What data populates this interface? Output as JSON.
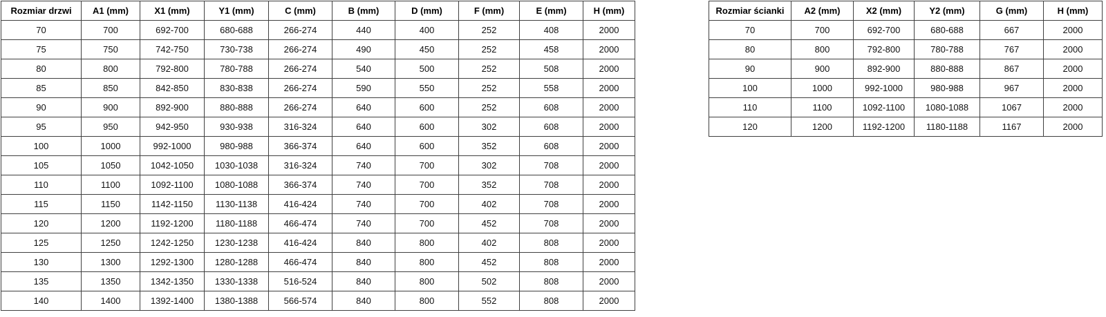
{
  "page": {
    "background_color": "#ffffff",
    "border_color": "#3f3f3f",
    "text_color": "#000000"
  },
  "door_table": {
    "headers": [
      "Rozmiar drzwi",
      "A1 (mm)",
      "X1 (mm)",
      "Y1 (mm)",
      "C (mm)",
      "B (mm)",
      "D (mm)",
      "F (mm)",
      "E (mm)",
      "H (mm)"
    ],
    "rows": [
      [
        "70",
        "700",
        "692-700",
        "680-688",
        "266-274",
        "440",
        "400",
        "252",
        "408",
        "2000"
      ],
      [
        "75",
        "750",
        "742-750",
        "730-738",
        "266-274",
        "490",
        "450",
        "252",
        "458",
        "2000"
      ],
      [
        "80",
        "800",
        "792-800",
        "780-788",
        "266-274",
        "540",
        "500",
        "252",
        "508",
        "2000"
      ],
      [
        "85",
        "850",
        "842-850",
        "830-838",
        "266-274",
        "590",
        "550",
        "252",
        "558",
        "2000"
      ],
      [
        "90",
        "900",
        "892-900",
        "880-888",
        "266-274",
        "640",
        "600",
        "252",
        "608",
        "2000"
      ],
      [
        "95",
        "950",
        "942-950",
        "930-938",
        "316-324",
        "640",
        "600",
        "302",
        "608",
        "2000"
      ],
      [
        "100",
        "1000",
        "992-1000",
        "980-988",
        "366-374",
        "640",
        "600",
        "352",
        "608",
        "2000"
      ],
      [
        "105",
        "1050",
        "1042-1050",
        "1030-1038",
        "316-324",
        "740",
        "700",
        "302",
        "708",
        "2000"
      ],
      [
        "110",
        "1100",
        "1092-1100",
        "1080-1088",
        "366-374",
        "740",
        "700",
        "352",
        "708",
        "2000"
      ],
      [
        "115",
        "1150",
        "1142-1150",
        "1130-1138",
        "416-424",
        "740",
        "700",
        "402",
        "708",
        "2000"
      ],
      [
        "120",
        "1200",
        "1192-1200",
        "1180-1188",
        "466-474",
        "740",
        "700",
        "452",
        "708",
        "2000"
      ],
      [
        "125",
        "1250",
        "1242-1250",
        "1230-1238",
        "416-424",
        "840",
        "800",
        "402",
        "808",
        "2000"
      ],
      [
        "130",
        "1300",
        "1292-1300",
        "1280-1288",
        "466-474",
        "840",
        "800",
        "452",
        "808",
        "2000"
      ],
      [
        "135",
        "1350",
        "1342-1350",
        "1330-1338",
        "516-524",
        "840",
        "800",
        "502",
        "808",
        "2000"
      ],
      [
        "140",
        "1400",
        "1392-1400",
        "1380-1388",
        "566-574",
        "840",
        "800",
        "552",
        "808",
        "2000"
      ]
    ]
  },
  "wall_table": {
    "headers": [
      "Rozmiar ścianki",
      "A2 (mm)",
      "X2 (mm)",
      "Y2 (mm)",
      "G (mm)",
      "H (mm)"
    ],
    "rows": [
      [
        "70",
        "700",
        "692-700",
        "680-688",
        "667",
        "2000"
      ],
      [
        "80",
        "800",
        "792-800",
        "780-788",
        "767",
        "2000"
      ],
      [
        "90",
        "900",
        "892-900",
        "880-888",
        "867",
        "2000"
      ],
      [
        "100",
        "1000",
        "992-1000",
        "980-988",
        "967",
        "2000"
      ],
      [
        "110",
        "1100",
        "1092-1100",
        "1080-1088",
        "1067",
        "2000"
      ],
      [
        "120",
        "1200",
        "1192-1200",
        "1180-1188",
        "1167",
        "2000"
      ]
    ]
  }
}
